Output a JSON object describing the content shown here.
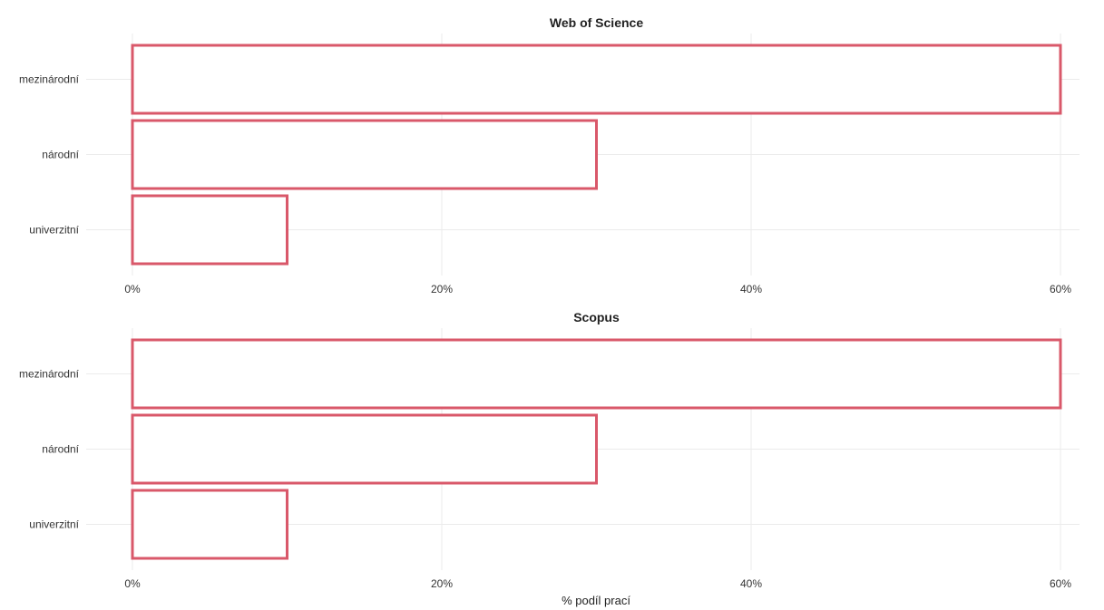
{
  "chart_data": {
    "type": "bar",
    "orientation": "horizontal",
    "xlabel": "% podíl prací",
    "ylabel": "",
    "xlim": [
      0,
      60
    ],
    "x_ticks": [
      0,
      20,
      40,
      60
    ],
    "x_tick_labels": [
      "0%",
      "20%",
      "40%",
      "60%"
    ],
    "grid": true,
    "legend": "none",
    "bar_fill": "#ffffff",
    "bar_outline": "#d9586a",
    "facets": [
      {
        "title": "Web of Science",
        "categories": [
          "mezinárodní",
          "národní",
          "univerzitní"
        ],
        "values": [
          60,
          30,
          10
        ]
      },
      {
        "title": "Scopus",
        "categories": [
          "mezinárodní",
          "národní",
          "univerzitní"
        ],
        "values": [
          60,
          30,
          10
        ]
      }
    ]
  }
}
